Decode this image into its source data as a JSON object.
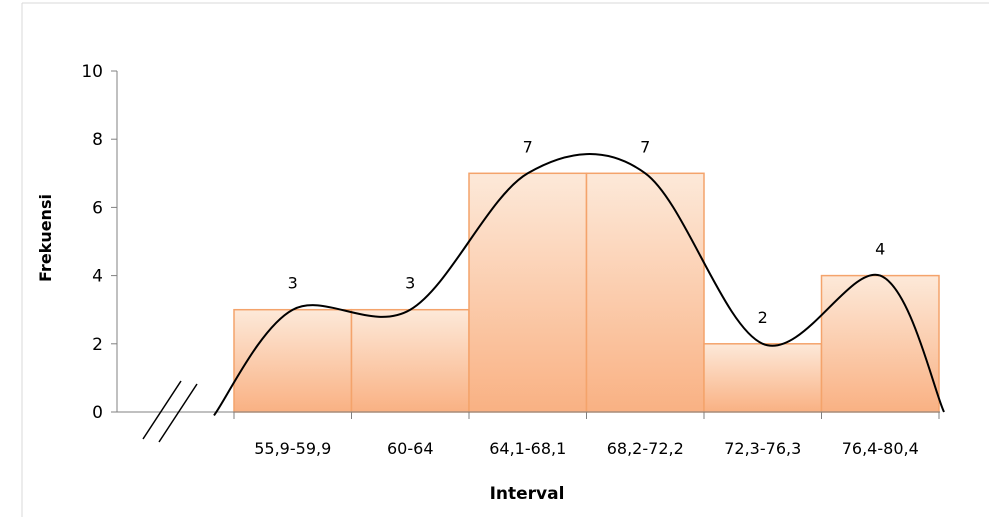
{
  "chart_data": {
    "type": "bar",
    "categories": [
      "55,9-59,9",
      "60-64",
      "64,1-68,1",
      "68,2-72,2",
      "72,3-76,3",
      "76,4-80,4"
    ],
    "values": [
      3,
      3,
      7,
      7,
      2,
      4
    ],
    "xlabel": "Interval",
    "ylabel": "Frekuensi",
    "ylim": [
      0,
      10
    ],
    "yticks": [
      0,
      2,
      4,
      6,
      8,
      10
    ],
    "data_labels": [
      "3",
      "3",
      "7",
      "7",
      "2",
      "4"
    ],
    "grid": false,
    "legend": "none",
    "axis_break": true,
    "polygon_curve": true,
    "colors": {
      "bar_top": "#fde9d9",
      "bar_bottom": "#f9b183",
      "bar_edge": "#f4a36b",
      "curve": "#000000",
      "axis": "#808080",
      "frame": "#d9d9d9"
    }
  }
}
